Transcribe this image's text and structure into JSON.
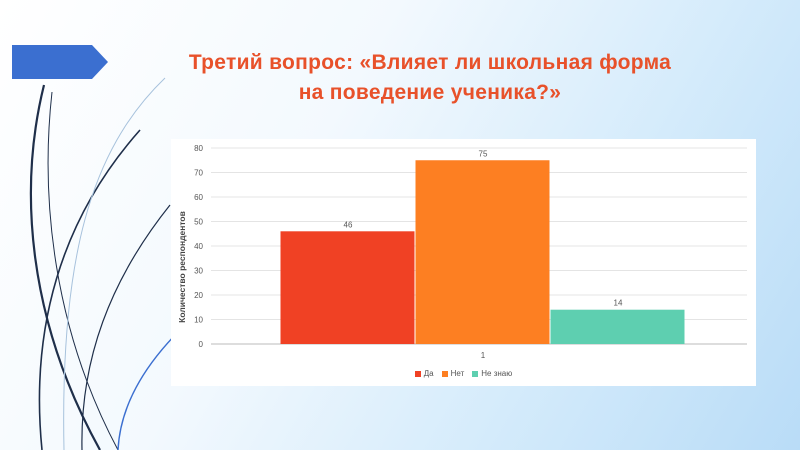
{
  "slide": {
    "title_line1": "Третий вопрос: «Влияет ли школьная форма",
    "title_line2": "на поведение ученика?»"
  },
  "chart_data": {
    "type": "bar",
    "categories": [
      "1"
    ],
    "series": [
      {
        "name": "Да",
        "values": [
          46
        ],
        "color": "#f04124"
      },
      {
        "name": "Нет",
        "values": [
          75
        ],
        "color": "#fd7f22"
      },
      {
        "name": "Не знаю",
        "values": [
          14
        ],
        "color": "#5ecfb0"
      }
    ],
    "xlabel": "",
    "ylabel": "Количество респондентов",
    "ylim": [
      0,
      80
    ],
    "yticks": [
      0,
      10,
      20,
      30,
      40,
      50,
      60,
      70,
      80
    ],
    "grid": true,
    "legend": "bottom",
    "data_labels": true
  }
}
